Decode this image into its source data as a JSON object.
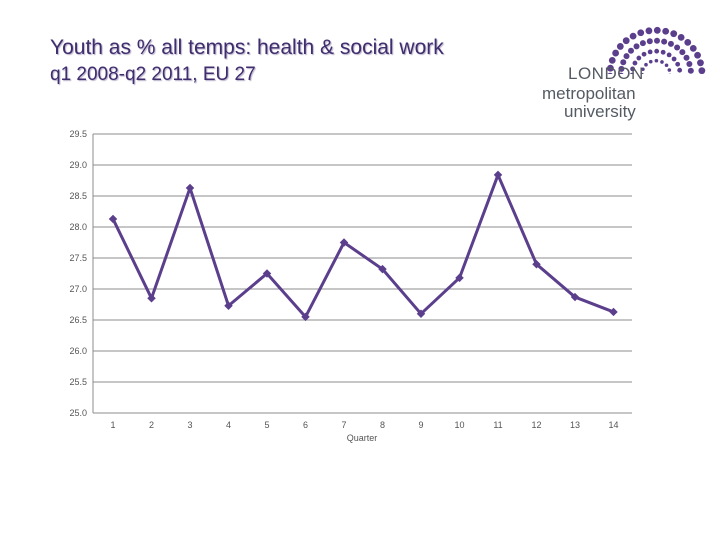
{
  "header": {
    "title": "Youth as % all temps: health & social work",
    "subtitle": "q1 2008-q2 2011, EU 27"
  },
  "logo": {
    "line1": "LONDON",
    "line2": "metropolitan",
    "line3": "university",
    "dot_color": "#5b3f8c"
  },
  "chart_data": {
    "type": "line",
    "title": "",
    "xlabel": "Quarter",
    "ylabel": "",
    "categories": [
      "1",
      "2",
      "3",
      "4",
      "5",
      "6",
      "7",
      "8",
      "9",
      "10",
      "11",
      "12",
      "13",
      "14"
    ],
    "series": [
      {
        "values": [
          28.13,
          26.85,
          28.63,
          26.73,
          27.25,
          26.55,
          27.75,
          27.32,
          26.6,
          27.18,
          28.84,
          27.4,
          26.87,
          26.63
        ]
      }
    ],
    "ylim": [
      25.0,
      29.5
    ],
    "yticks": [
      "25.0",
      "25.5",
      "26.0",
      "26.5",
      "27.0",
      "27.5",
      "28.0",
      "28.5",
      "29.0",
      "29.5"
    ],
    "grid": true,
    "line_color": "#5b3f8c"
  }
}
